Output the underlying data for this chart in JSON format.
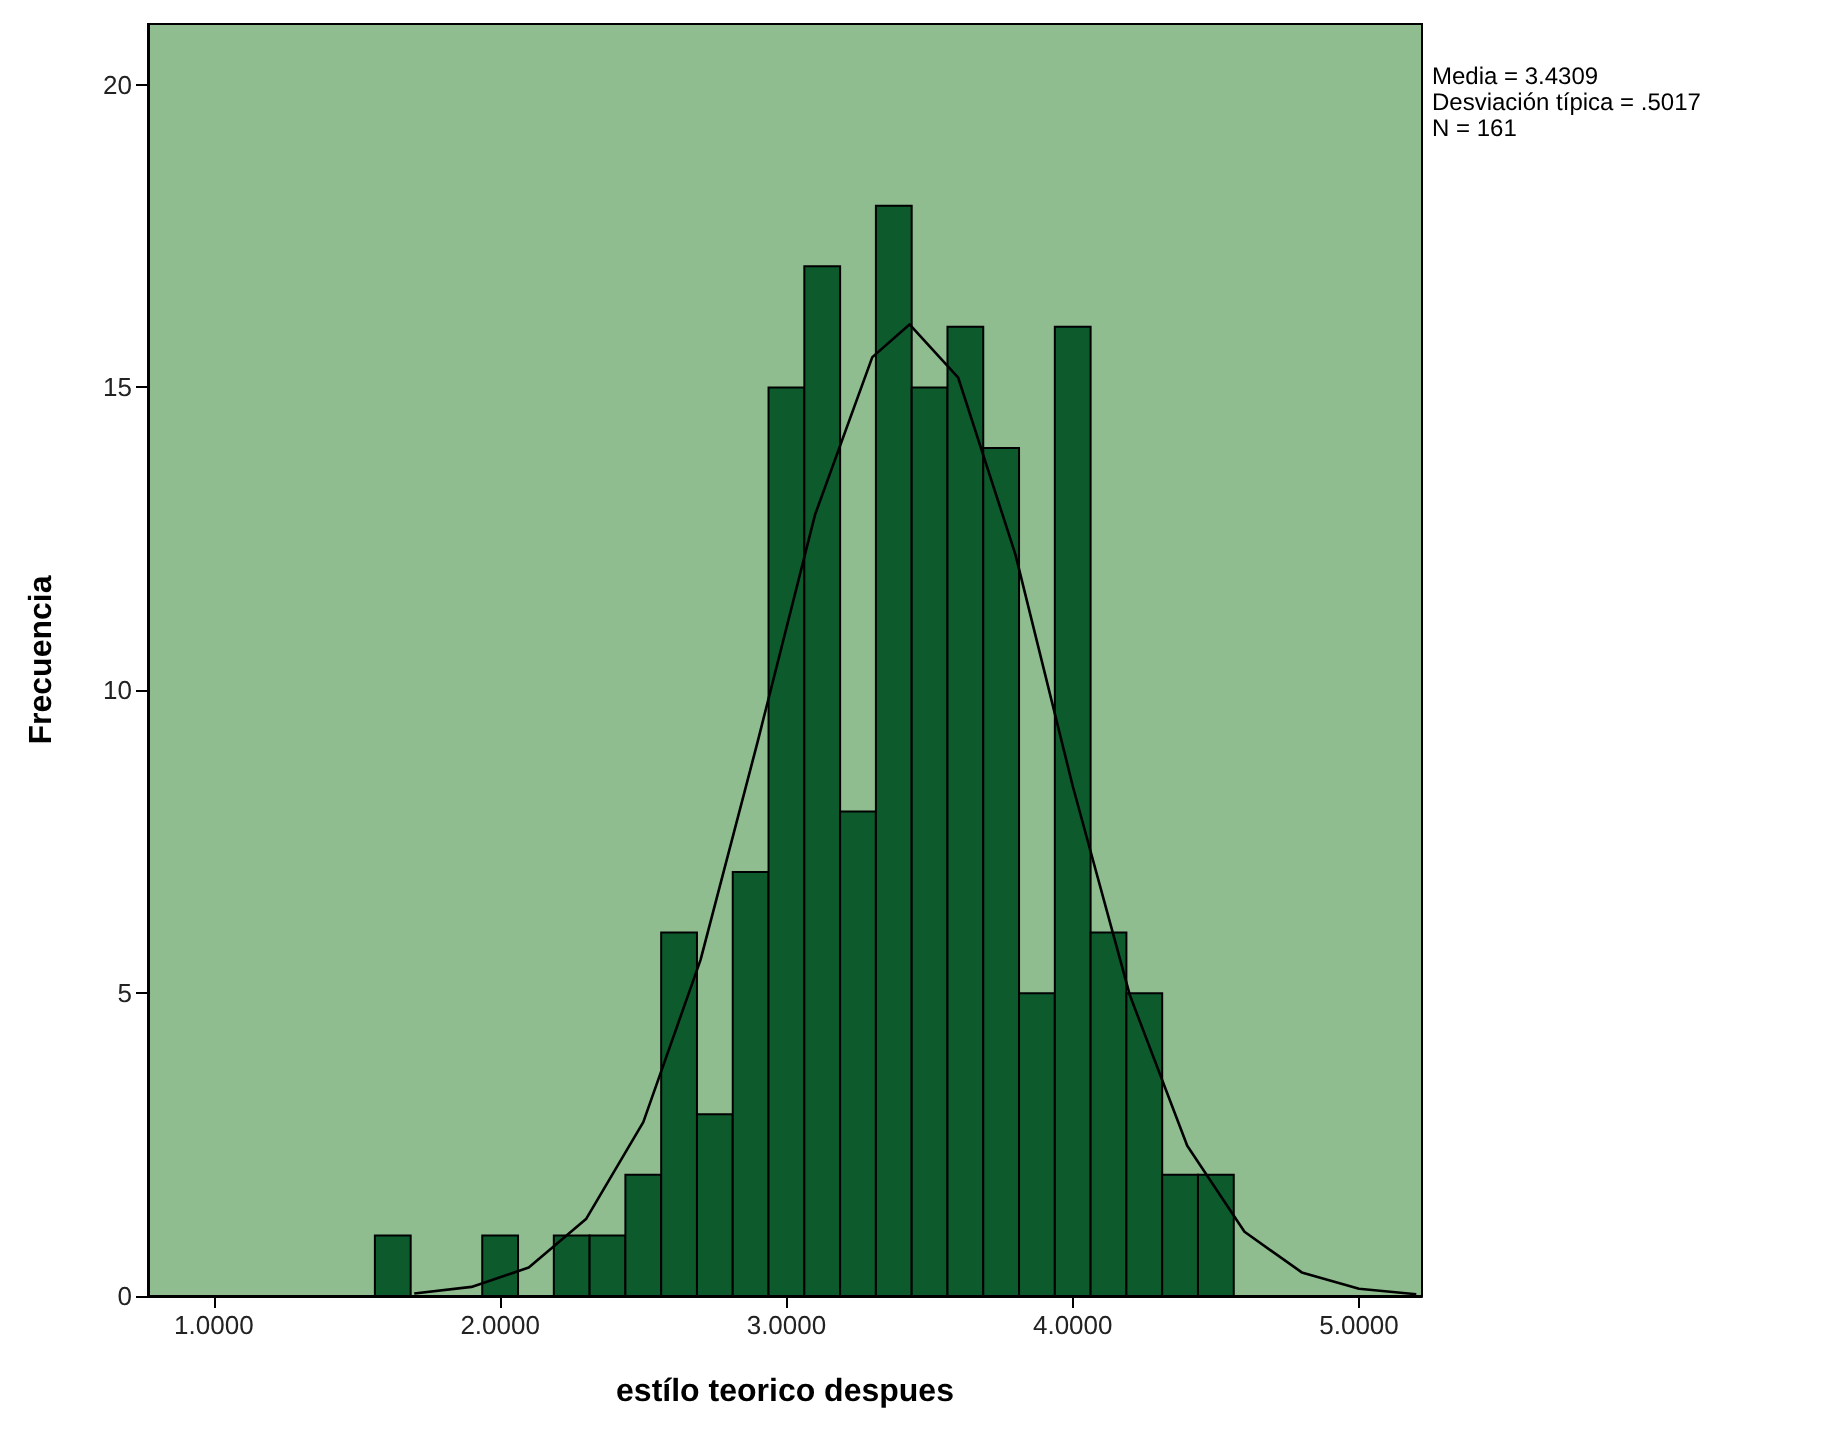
{
  "chart_data": {
    "type": "histogram",
    "xlabel": "estílo teorico despues",
    "ylabel": "Frecuencia",
    "annotations": [
      "Media = 3.4309",
      "Desviación típica = .5017",
      "N = 161"
    ],
    "bins": [
      1.5625,
      1.6875,
      1.8125,
      1.9375,
      2.0625,
      2.1875,
      2.3125,
      2.4375,
      2.5625,
      2.6875,
      2.8125,
      2.9375,
      3.0625,
      3.1875,
      3.3125,
      3.4375,
      3.5625,
      3.6875,
      3.8125,
      3.9375,
      4.0625,
      4.1875,
      4.3125,
      4.4375,
      4.5625
    ],
    "values": [
      1,
      0,
      0,
      1,
      0,
      1,
      1,
      2,
      6,
      3,
      7,
      15,
      17,
      8,
      18,
      15,
      16,
      14,
      5,
      16,
      6,
      5,
      2,
      2
    ],
    "color": "#0d5a2c",
    "series": [
      {
        "type": "line",
        "color": "#000000",
        "x": [
          1.7,
          1.9,
          2.1,
          2.3,
          2.5,
          2.7,
          2.9,
          3.1,
          3.3,
          3.43,
          3.6,
          3.8,
          4.0,
          4.2,
          4.4,
          4.6,
          4.8,
          5.0,
          5.2
        ],
        "values": [
          0.04,
          0.15,
          0.47,
          1.27,
          2.87,
          5.55,
          9.16,
          12.9,
          15.5,
          16.04,
          15.16,
          12.24,
          8.42,
          4.96,
          2.48,
          1.06,
          0.39,
          0.12,
          0.03
        ]
      }
    ],
    "xlim": [
      0.77,
      5.22
    ],
    "xticks": [
      {
        "value": 1,
        "label": "1.0000"
      },
      {
        "value": 2,
        "label": "2.0000"
      },
      {
        "value": 3,
        "label": "3.0000"
      },
      {
        "value": 4,
        "label": "4.0000"
      },
      {
        "value": 5,
        "label": "5.0000"
      }
    ],
    "ylim": [
      0,
      21
    ],
    "yticks": [
      0,
      5,
      10,
      15,
      20
    ]
  }
}
